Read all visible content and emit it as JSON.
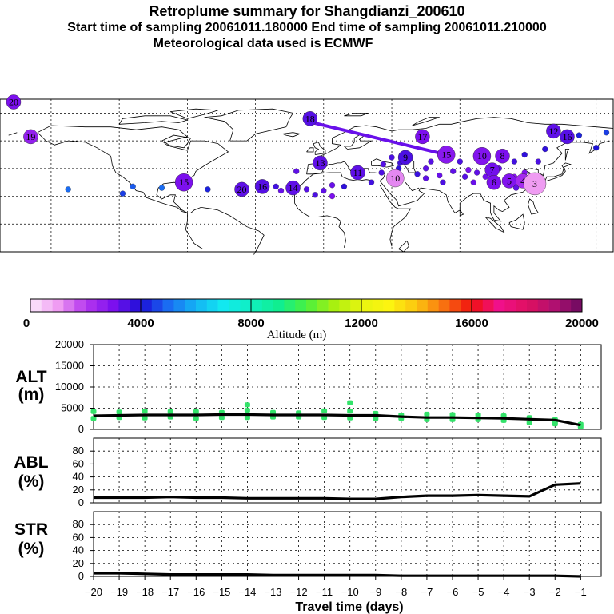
{
  "header": {
    "title": "Retroplume summary for Shangdianzi_200610",
    "sampling": "Start time of sampling 20061011.180000     End time of sampling 20061011.210000",
    "met": "Meteorological data used is ECMWF"
  },
  "colors": {
    "line": "#000000",
    "points": "#33e36a",
    "grid": "#000000"
  },
  "chart_data": [
    {
      "id": "retroplume-map",
      "type": "scatter",
      "description_units": "cluster centroids, labelled by travel day; colour = altitude (m)",
      "clusters": [
        {
          "label": "19",
          "lon": -172,
          "lat": 63,
          "alt": 2600
        },
        {
          "label": "18",
          "lon": -8,
          "lat": 76,
          "alt": 3400
        },
        {
          "label": "17",
          "lon": 58,
          "lat": 63,
          "alt": 3000
        },
        {
          "label": "12",
          "lon": 135,
          "lat": 67,
          "alt": 3300
        },
        {
          "label": "16",
          "lon": 143,
          "lat": 63,
          "alt": 3400
        },
        {
          "label": "20",
          "lon": 178,
          "lat": 88,
          "alt": 3000
        },
        {
          "label": "15",
          "lon": 72,
          "lat": 50,
          "alt": 2800
        },
        {
          "label": "10",
          "lon": 93,
          "lat": 49,
          "alt": 2900
        },
        {
          "label": "9",
          "lon": 48,
          "lat": 48,
          "alt": 3500
        },
        {
          "label": "8",
          "lon": 105,
          "lat": 49,
          "alt": 3000
        },
        {
          "label": "7",
          "lon": 99,
          "lat": 39,
          "alt": 3100
        },
        {
          "label": "6",
          "lon": 100,
          "lat": 30,
          "alt": 3000
        },
        {
          "label": "5",
          "lon": 109,
          "lat": 31,
          "alt": 2900
        },
        {
          "label": "4",
          "lon": 117,
          "lat": 31,
          "alt": 2300
        },
        {
          "label": "3",
          "lon": 124,
          "lat": 29,
          "alt": 1000
        },
        {
          "label": "11",
          "lon": 20,
          "lat": 37,
          "alt": 3300
        },
        {
          "label": "13",
          "lon": -2,
          "lat": 44,
          "alt": 3300
        },
        {
          "label": "14",
          "lon": -18,
          "lat": 26,
          "alt": 3300
        },
        {
          "label": "16",
          "lon": -36,
          "lat": 27,
          "alt": 3400
        },
        {
          "label": "20",
          "lon": -48,
          "lat": 25,
          "alt": 3300
        },
        {
          "label": "15",
          "lon": -82,
          "lat": 30,
          "alt": 3000
        },
        {
          "label": "10",
          "lon": 42,
          "lat": 33,
          "alt": 1200
        }
      ],
      "tracks": [
        {
          "from_lon": -6,
          "from_lat": 73,
          "to_lon": 72,
          "to_lat": 50,
          "alt": 3200
        }
      ]
    },
    {
      "id": "altitude-colorbar",
      "type": "heatmap",
      "xlabel": "Altitude (m)",
      "ticks": [
        "0",
        "4000",
        "8000",
        "12000",
        "16000",
        "20000"
      ],
      "tick_values": [
        0,
        4000,
        8000,
        12000,
        16000,
        20000
      ],
      "range": [
        0,
        20000
      ]
    },
    {
      "id": "alt-panel",
      "type": "line",
      "label": "ALT",
      "unit": "(m)",
      "ylim": [
        0,
        20000
      ],
      "yticks": [
        "0",
        "5000",
        "10000",
        "15000",
        "20000"
      ],
      "ytick_values": [
        0,
        5000,
        10000,
        15000,
        20000
      ],
      "x": [
        -20,
        -19,
        -18,
        -17,
        -16,
        -15,
        -14,
        -13,
        -12,
        -11,
        -10,
        -9,
        -8,
        -7,
        -6,
        -5,
        -4,
        -3,
        -2,
        -1
      ],
      "values": [
        3200,
        3300,
        3400,
        3400,
        3400,
        3500,
        3500,
        3400,
        3400,
        3400,
        3300,
        3300,
        3000,
        2800,
        2800,
        2700,
        2600,
        2400,
        2200,
        1000
      ],
      "scatter_x": [
        -20,
        -20,
        -19,
        -19,
        -18,
        -18,
        -17,
        -17,
        -16,
        -16,
        -15,
        -15,
        -14,
        -14,
        -14,
        -13,
        -13,
        -12,
        -12,
        -11,
        -11,
        -10,
        -10,
        -10,
        -9,
        -9,
        -8,
        -8,
        -7,
        -7,
        -6,
        -6,
        -5,
        -5,
        -4,
        -4,
        -3,
        -3,
        -2,
        -2,
        -2,
        -1,
        -1
      ],
      "scatter_y": [
        2600,
        4200,
        2800,
        4100,
        2700,
        4300,
        2900,
        4200,
        2600,
        4200,
        2800,
        4000,
        2800,
        4500,
        5800,
        2900,
        4000,
        2900,
        3900,
        2800,
        4400,
        2700,
        4300,
        6300,
        2600,
        3800,
        2600,
        3400,
        2300,
        3600,
        2300,
        3500,
        2300,
        3400,
        2100,
        3200,
        1600,
        2800,
        1300,
        2300,
        1800,
        1200,
        600
      ]
    },
    {
      "id": "abl-panel",
      "type": "line",
      "label": "ABL",
      "unit": "(%)",
      "ylim": [
        0,
        100
      ],
      "yticks": [
        "0",
        "20",
        "40",
        "60",
        "80"
      ],
      "ytick_values": [
        0,
        20,
        40,
        60,
        80
      ],
      "x": [
        -20,
        -19,
        -18,
        -17,
        -16,
        -15,
        -14,
        -13,
        -12,
        -11,
        -10,
        -9,
        -8,
        -7,
        -6,
        -5,
        -4,
        -3,
        -2,
        -1
      ],
      "values": [
        8,
        8,
        8,
        9,
        8,
        8,
        7,
        7,
        7,
        7,
        6,
        6,
        9,
        11,
        11,
        12,
        11,
        10,
        28,
        30
      ]
    },
    {
      "id": "str-panel",
      "type": "line",
      "label": "STR",
      "unit": "(%)",
      "ylim": [
        0,
        100
      ],
      "yticks": [
        "0",
        "20",
        "40",
        "60",
        "80"
      ],
      "ytick_values": [
        0,
        20,
        40,
        60,
        80
      ],
      "x": [
        -20,
        -19,
        -18,
        -17,
        -16,
        -15,
        -14,
        -13,
        -12,
        -11,
        -10,
        -9,
        -8,
        -7,
        -6,
        -5,
        -4,
        -3,
        -2,
        -1
      ],
      "values": [
        5,
        5,
        4,
        3,
        3,
        3,
        3,
        2,
        2,
        2,
        2,
        2,
        1,
        1,
        1,
        1,
        1,
        1,
        1,
        0
      ]
    },
    {
      "id": "travel-axis",
      "type": "line",
      "xlabel": "Travel time (days)",
      "xticks": [
        "−20",
        "−19",
        "−18",
        "−17",
        "−16",
        "−15",
        "−14",
        "−13",
        "−12",
        "−11",
        "−10",
        "−9",
        "−8",
        "−7",
        "−6",
        "−5",
        "−4",
        "−3",
        "−2",
        "−1"
      ],
      "xtick_values": [
        -20,
        -19,
        -18,
        -17,
        -16,
        -15,
        -14,
        -13,
        -12,
        -11,
        -10,
        -9,
        -8,
        -7,
        -6,
        -5,
        -4,
        -3,
        -2,
        -1
      ],
      "xlim": [
        -20,
        -0.2
      ]
    }
  ]
}
